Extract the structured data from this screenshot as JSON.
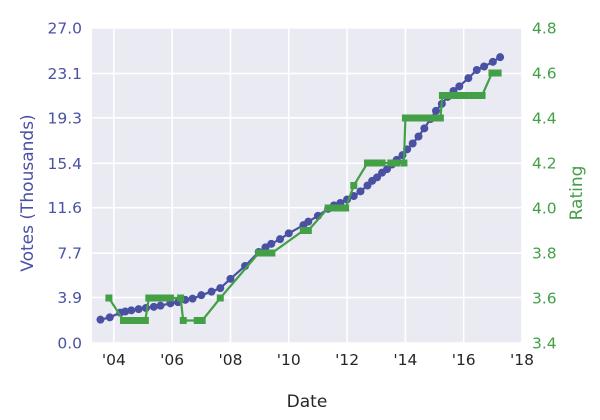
{
  "chart_data": {
    "type": "line",
    "title": "",
    "xlabel": "Date",
    "ylabel_left": "Votes (Thousands)",
    "ylabel_right": "Rating",
    "x_range": [
      2003.25,
      2018.0
    ],
    "y_left_range": [
      0.0,
      27.0
    ],
    "y_right_range": [
      3.4,
      4.8
    ],
    "grid": true,
    "legend": "none",
    "x_ticks": {
      "values": [
        2004,
        2006,
        2008,
        2010,
        2012,
        2014,
        2016,
        2018
      ],
      "labels": [
        "'04",
        "'06",
        "'08",
        "'10",
        "'12",
        "'14",
        "'16",
        "'18"
      ]
    },
    "y_left_ticks": {
      "values": [
        0.0,
        3.9,
        7.7,
        11.6,
        15.4,
        19.3,
        23.1,
        27.0
      ],
      "labels": [
        "0.0",
        "3.9",
        "7.7",
        "11.6",
        "15.4",
        "19.3",
        "23.1",
        "27.0"
      ]
    },
    "y_right_ticks": {
      "values": [
        3.4,
        3.6,
        3.8,
        4.0,
        4.2,
        4.4,
        4.6,
        4.8
      ],
      "labels": [
        "3.4",
        "3.6",
        "3.8",
        "4.0",
        "4.2",
        "4.4",
        "4.6",
        "4.8"
      ]
    },
    "colors": {
      "votes": "#4a51a3",
      "rating": "#43a047",
      "plot_background": "#eaeaf2",
      "gridline": "#ffffff",
      "x_tick_text": "#262626"
    },
    "series": [
      {
        "name": "votes-thousands",
        "axis": "left",
        "marker": "circle",
        "color": "#4a51a3",
        "points": [
          [
            2003.54,
            2.0
          ],
          [
            2003.86,
            2.2
          ],
          [
            2004.22,
            2.6
          ],
          [
            2004.39,
            2.7
          ],
          [
            2004.6,
            2.8
          ],
          [
            2004.85,
            2.9
          ],
          [
            2005.1,
            3.0
          ],
          [
            2005.37,
            3.1
          ],
          [
            2005.6,
            3.2
          ],
          [
            2005.94,
            3.4
          ],
          [
            2006.2,
            3.5
          ],
          [
            2006.45,
            3.7
          ],
          [
            2006.7,
            3.8
          ],
          [
            2007.0,
            4.1
          ],
          [
            2007.35,
            4.4
          ],
          [
            2007.65,
            4.7
          ],
          [
            2008.0,
            5.5
          ],
          [
            2008.5,
            6.6
          ],
          [
            2008.97,
            7.8
          ],
          [
            2009.2,
            8.2
          ],
          [
            2009.4,
            8.5
          ],
          [
            2009.7,
            8.9
          ],
          [
            2010.0,
            9.4
          ],
          [
            2010.5,
            10.1
          ],
          [
            2010.67,
            10.4
          ],
          [
            2011.0,
            10.9
          ],
          [
            2011.35,
            11.5
          ],
          [
            2011.55,
            11.8
          ],
          [
            2011.77,
            12.0
          ],
          [
            2012.0,
            12.3
          ],
          [
            2012.23,
            12.6
          ],
          [
            2012.46,
            13.0
          ],
          [
            2012.7,
            13.5
          ],
          [
            2012.86,
            13.9
          ],
          [
            2013.03,
            14.2
          ],
          [
            2013.2,
            14.6
          ],
          [
            2013.37,
            14.9
          ],
          [
            2013.54,
            15.3
          ],
          [
            2013.7,
            15.7
          ],
          [
            2013.9,
            16.1
          ],
          [
            2014.06,
            16.6
          ],
          [
            2014.25,
            17.1
          ],
          [
            2014.45,
            17.7
          ],
          [
            2014.65,
            18.4
          ],
          [
            2014.86,
            19.2
          ],
          [
            2015.05,
            19.9
          ],
          [
            2015.25,
            20.5
          ],
          [
            2015.45,
            21.1
          ],
          [
            2015.65,
            21.6
          ],
          [
            2015.85,
            22.0
          ],
          [
            2016.16,
            22.7
          ],
          [
            2016.45,
            23.4
          ],
          [
            2016.7,
            23.7
          ],
          [
            2017.0,
            24.1
          ],
          [
            2017.25,
            24.5
          ]
        ]
      },
      {
        "name": "rating",
        "axis": "right",
        "marker": "square",
        "color": "#43a047",
        "points": [
          [
            2003.83,
            3.6
          ],
          [
            2004.33,
            3.5
          ],
          [
            2004.5,
            3.5
          ],
          [
            2004.67,
            3.5
          ],
          [
            2004.85,
            3.5
          ],
          [
            2005.08,
            3.5
          ],
          [
            2005.2,
            3.6
          ],
          [
            2005.37,
            3.6
          ],
          [
            2005.54,
            3.6
          ],
          [
            2005.77,
            3.6
          ],
          [
            2005.94,
            3.6
          ],
          [
            2006.29,
            3.6
          ],
          [
            2006.38,
            3.5
          ],
          [
            2006.86,
            3.5
          ],
          [
            2007.03,
            3.5
          ],
          [
            2007.65,
            3.6
          ],
          [
            2008.97,
            3.8
          ],
          [
            2009.2,
            3.8
          ],
          [
            2009.42,
            3.8
          ],
          [
            2010.5,
            3.9
          ],
          [
            2010.67,
            3.9
          ],
          [
            2011.35,
            4.0
          ],
          [
            2011.55,
            4.0
          ],
          [
            2011.77,
            4.0
          ],
          [
            2011.95,
            4.0
          ],
          [
            2012.23,
            4.1
          ],
          [
            2012.7,
            4.2
          ],
          [
            2012.86,
            4.2
          ],
          [
            2013.03,
            4.2
          ],
          [
            2013.2,
            4.2
          ],
          [
            2013.5,
            4.2
          ],
          [
            2013.7,
            4.2
          ],
          [
            2013.95,
            4.2
          ],
          [
            2014.0,
            4.4
          ],
          [
            2014.15,
            4.4
          ],
          [
            2014.3,
            4.4
          ],
          [
            2014.5,
            4.4
          ],
          [
            2014.7,
            4.4
          ],
          [
            2014.9,
            4.4
          ],
          [
            2015.1,
            4.4
          ],
          [
            2015.2,
            4.4
          ],
          [
            2015.27,
            4.5
          ],
          [
            2015.45,
            4.5
          ],
          [
            2015.65,
            4.5
          ],
          [
            2015.85,
            4.5
          ],
          [
            2016.05,
            4.5
          ],
          [
            2016.25,
            4.5
          ],
          [
            2016.45,
            4.5
          ],
          [
            2016.63,
            4.5
          ],
          [
            2016.97,
            4.6
          ],
          [
            2017.18,
            4.6
          ]
        ]
      }
    ]
  }
}
